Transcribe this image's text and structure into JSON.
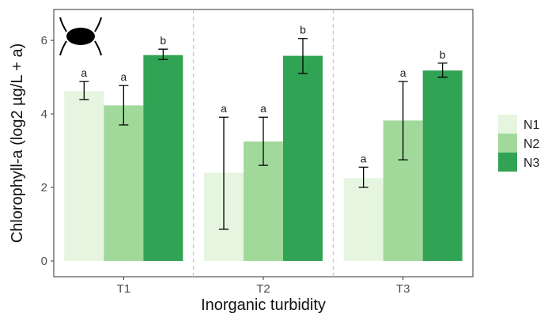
{
  "chart_data": {
    "type": "bar",
    "x_label": "Inorganic turbidity",
    "y_label": "Chlorophyll-a (log2 µg/L + a)",
    "categories": [
      "T1",
      "T2",
      "T3"
    ],
    "ylim": [
      -0.43,
      6.84
    ],
    "yticks": [
      0,
      2,
      4,
      6
    ],
    "series": [
      {
        "name": "N1",
        "color": "#e5f5e0",
        "values": [
          4.62,
          2.4,
          2.25
        ],
        "lower": [
          4.39,
          0.86,
          2.0
        ],
        "upper": [
          4.88,
          3.91,
          2.55
        ],
        "letters": [
          "a",
          "a",
          "a"
        ]
      },
      {
        "name": "N2",
        "color": "#a1d99b",
        "values": [
          4.23,
          3.25,
          3.82
        ],
        "lower": [
          3.7,
          2.6,
          2.75
        ],
        "upper": [
          4.77,
          3.91,
          4.88
        ],
        "letters": [
          "a",
          "a",
          "a"
        ]
      },
      {
        "name": "N3",
        "color": "#31a354",
        "values": [
          5.6,
          5.58,
          5.18
        ],
        "lower": [
          5.48,
          5.1,
          5.0
        ],
        "upper": [
          5.76,
          6.05,
          5.38
        ],
        "letters": [
          "b",
          "b",
          "b"
        ]
      }
    ]
  }
}
